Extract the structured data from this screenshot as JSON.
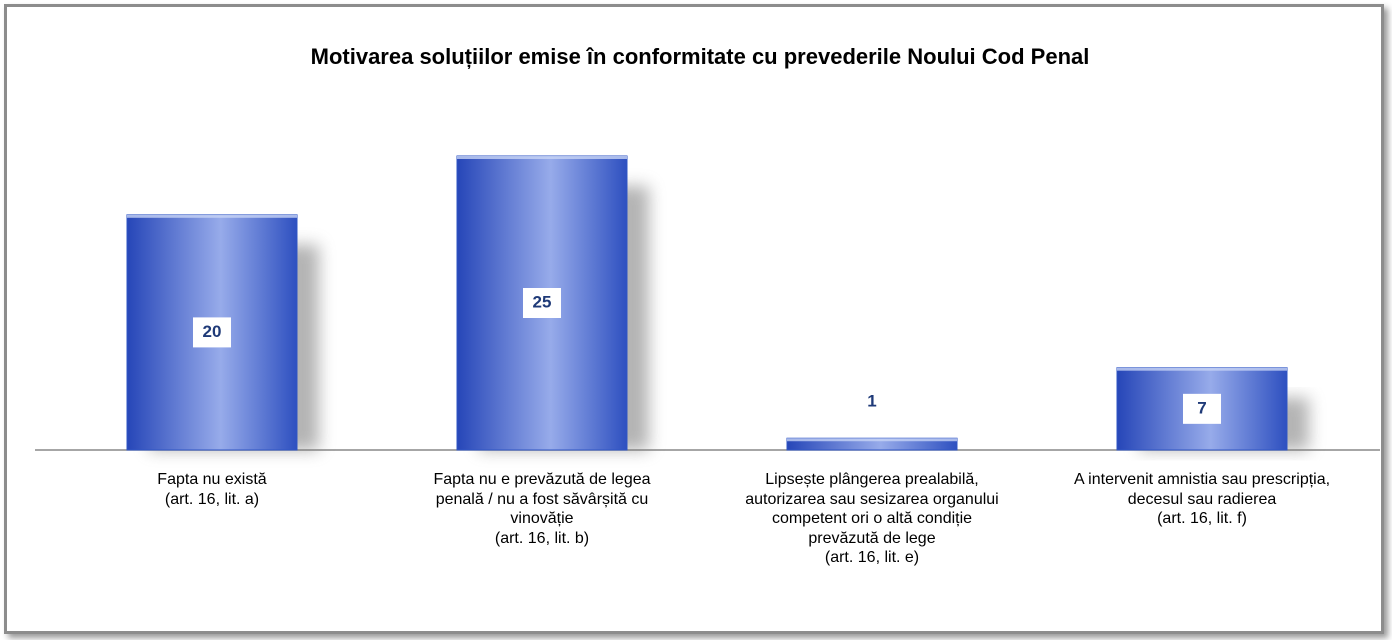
{
  "chart_data": {
    "type": "bar",
    "title": "Motivarea soluțiilor emise în conformitate cu prevederile Noului Cod Penal",
    "categories": [
      "Fapta nu există\n(art. 16, lit. a)",
      "Fapta nu e prevăzută de legea\npenală / nu a fost săvârșită cu\nvinovăție\n(art. 16, lit. b)",
      "Lipsește plângerea prealabilă,\nautorizarea sau sesizarea organului\ncompetent ori o altă condiție\nprevăzută de lege\n(art. 16, lit. e)",
      "A intervenit amnistia sau prescripția,\ndecesul sau radierea\n(art. 16, lit. f)"
    ],
    "values": [
      20,
      25,
      1,
      7
    ],
    "color": "#2f55c4"
  }
}
